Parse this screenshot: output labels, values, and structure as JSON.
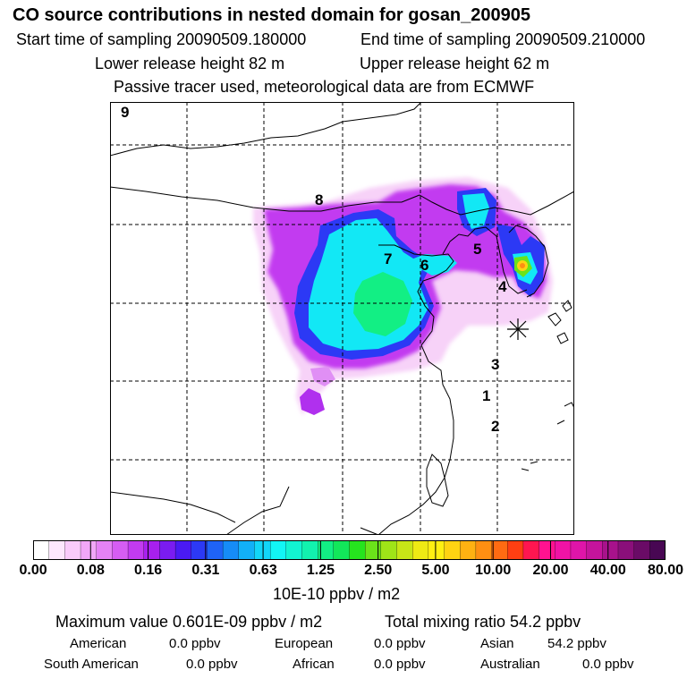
{
  "header": {
    "title": "CO  source contributions in nested domain for gosan_200905",
    "start_sampling": "Start time of sampling 20090509.180000",
    "end_sampling": "End time of sampling 20090509.210000",
    "lower_release": "Lower release height   82 m",
    "upper_release": "Upper release height   62 m",
    "tracer_info": "Passive tracer used, meteorological data are from ECMWF"
  },
  "map": {
    "labels": [
      "9",
      "8",
      "7",
      "6",
      "5",
      "4",
      "3",
      "1",
      "2"
    ],
    "receptor_marker": "receptor-star-icon"
  },
  "colorbar": {
    "colors": [
      "#ffffff",
      "#fde7fd",
      "#f9cbfa",
      "#f1a7f7",
      "#e582f5",
      "#d65df3",
      "#c23bf0",
      "#a820ee",
      "#7a1cf0",
      "#4a1af3",
      "#2c39f5",
      "#1f63f6",
      "#168cf7",
      "#12b0f8",
      "#12d6f9",
      "#12f6f5",
      "#12f4d2",
      "#12f2ae",
      "#12ef84",
      "#12e75a",
      "#26e41e",
      "#6be31a",
      "#9fe418",
      "#c7e617",
      "#efea14",
      "#fff012",
      "#ffd312",
      "#ffb112",
      "#ff8f12",
      "#ff6b12",
      "#ff3f12",
      "#ff1650",
      "#ff1290",
      "#f013a5",
      "#df15a9",
      "#c5149c",
      "#a8128b",
      "#8a0f7a",
      "#6a0b66",
      "#480753"
    ],
    "tick_labels": [
      "0.00",
      "0.08",
      "0.16",
      "0.31",
      "0.63",
      "1.25",
      "2.50",
      "5.00",
      "10.00",
      "20.00",
      "40.00",
      "80.00"
    ],
    "unit": "10E-10 ppbv / m2"
  },
  "summary": {
    "max_value": "Maximum value  0.601E-09 ppbv / m2",
    "total_mixing": "Total mixing ratio       54.2 ppbv"
  },
  "sources": [
    {
      "name": "American",
      "value": "0.0 ppbv"
    },
    {
      "name": "European",
      "value": "0.0 ppbv"
    },
    {
      "name": "Asian",
      "value": "54.2 ppbv"
    },
    {
      "name": "South American",
      "value": "0.0 ppbv"
    },
    {
      "name": "African",
      "value": "0.0 ppbv"
    },
    {
      "name": "Australian",
      "value": "0.0 ppbv"
    }
  ]
}
